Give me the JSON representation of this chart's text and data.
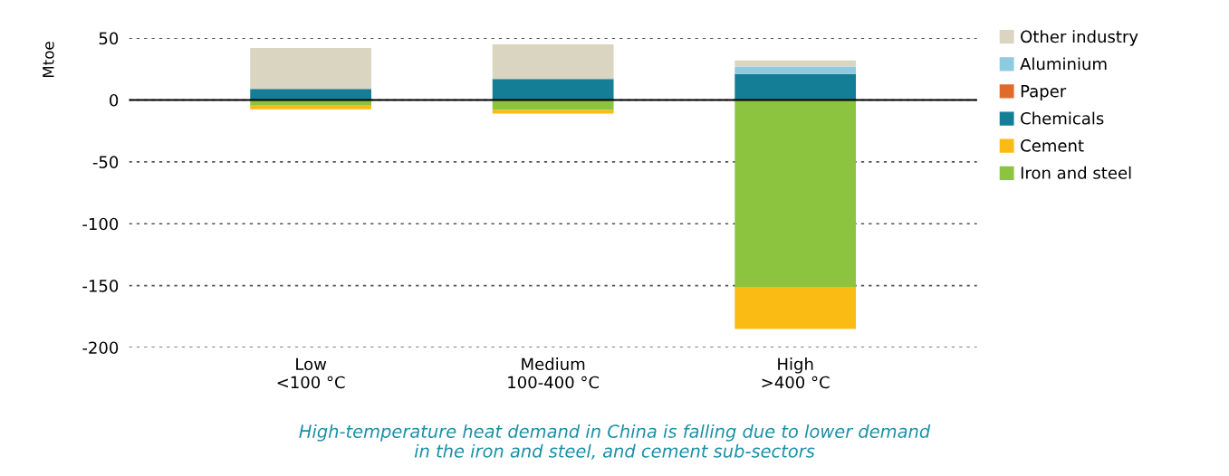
{
  "chart_data": {
    "type": "bar",
    "stacked": true,
    "ylabel": "Mtoe",
    "categories": [
      "Low\n<100 °C",
      "Medium\n100-400 °C",
      "High\n>400 °C"
    ],
    "series": [
      {
        "name": "Iron and steel",
        "color": "#8cc43f",
        "values": [
          -4,
          -8,
          -151
        ]
      },
      {
        "name": "Cement",
        "color": "#fbbb15",
        "values": [
          -3.5,
          -3,
          -34
        ]
      },
      {
        "name": "Chemicals",
        "color": "#137e96",
        "values": [
          9,
          17,
          21
        ]
      },
      {
        "name": "Paper",
        "color": "#e06a2a",
        "values": [
          0,
          0,
          0
        ]
      },
      {
        "name": "Aluminium",
        "color": "#8ecae0",
        "values": [
          0,
          0,
          6
        ]
      },
      {
        "name": "Other industry",
        "color": "#d9d5c1",
        "values": [
          33,
          28,
          5
        ]
      }
    ],
    "ylim": [
      -200,
      50
    ],
    "yticks": [
      -200,
      -150,
      -100,
      -50,
      0,
      50
    ],
    "grid": "y",
    "legend": "right",
    "ref_lines": [
      {
        "axis": "y",
        "value": 0,
        "color": "#000000",
        "line_style": "solid"
      }
    ],
    "annotations": [
      "High-temperature heat demand in China is falling due to lower demand\nin the iron and steel, and cement sub-sectors"
    ]
  }
}
